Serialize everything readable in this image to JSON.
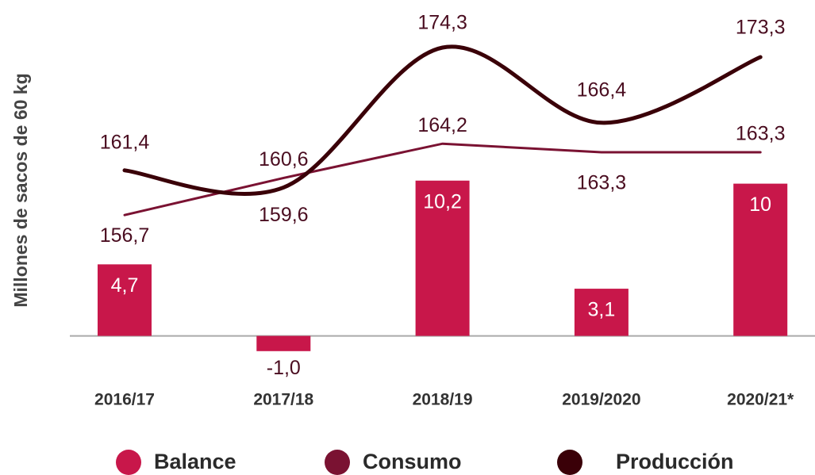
{
  "chart_data": {
    "type": "bar-line",
    "y_axis_label": "Millones de sacos de 60 kg",
    "categories": [
      "2016/17",
      "2017/18",
      "2018/19",
      "2019/2020",
      "2020/21*"
    ],
    "ylim": [
      -2.5,
      20.5
    ],
    "y2lim": [
      140,
      176.8
    ],
    "series": [
      {
        "name": "Balance",
        "type": "bar",
        "color": "#c8174a",
        "values": [
          4.7,
          -1.0,
          10.2,
          3.1,
          10
        ],
        "value_labels": [
          "4,7",
          "-1,0",
          "10,2",
          "3,1",
          "10"
        ]
      },
      {
        "name": "Consumo",
        "type": "line",
        "axis": "y2",
        "color": "#7a1232",
        "values": [
          156.7,
          160.6,
          164.2,
          163.3,
          163.3
        ],
        "value_labels": [
          "156,7",
          "160,6",
          "164,2",
          "163,3",
          "163,3"
        ]
      },
      {
        "name": "Producción",
        "type": "line",
        "axis": "y2",
        "color": "#3a0008",
        "values": [
          161.4,
          159.6,
          174.3,
          166.4,
          173.3
        ],
        "value_labels": [
          "161,4",
          "159,6",
          "174,3",
          "166,4",
          "173,3"
        ]
      }
    ]
  }
}
